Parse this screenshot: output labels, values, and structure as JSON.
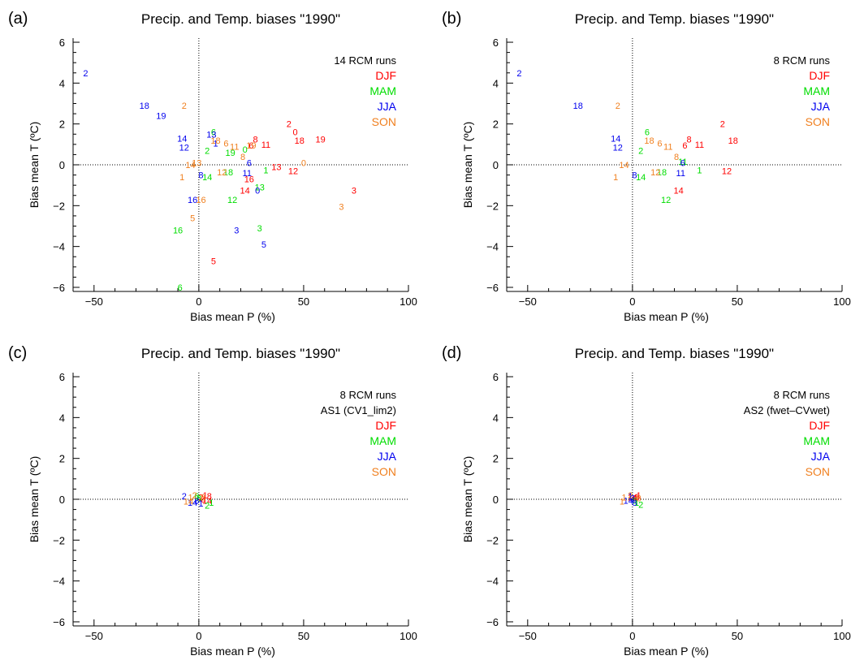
{
  "colors": {
    "DJF": "#ff0000",
    "MAM": "#00dd00",
    "JJA": "#0000ee",
    "SON": "#f08020"
  },
  "legend": [
    "DJF",
    "MAM",
    "JJA",
    "SON"
  ],
  "chart_data": [
    {
      "panel": "(a)",
      "type": "scatter",
      "title": "Precip. and Temp. biases \"1990\"",
      "xlabel": "Bias mean P (%)",
      "ylabel": "Bias mean T (ºC)",
      "xlim": [
        -60,
        100
      ],
      "ylim": [
        -6.2,
        6.2
      ],
      "xticks": [
        -50,
        0,
        50,
        100
      ],
      "yticks": [
        -6,
        -4,
        -2,
        0,
        2,
        4,
        6
      ],
      "notes": [
        "14 RCM runs"
      ],
      "series": [
        {
          "name": "DJF",
          "points": [
            {
              "label": "2",
              "x": 43,
              "y": 2.0
            },
            {
              "label": "0",
              "x": 46,
              "y": 1.6
            },
            {
              "label": "18",
              "x": 48,
              "y": 1.2
            },
            {
              "label": "19",
              "x": 58,
              "y": 1.25
            },
            {
              "label": "11",
              "x": 32,
              "y": 1.0
            },
            {
              "label": "8",
              "x": 27,
              "y": 1.25
            },
            {
              "label": "6",
              "x": 25,
              "y": 0.95
            },
            {
              "label": "13",
              "x": 37,
              "y": -0.1
            },
            {
              "label": "12",
              "x": 45,
              "y": -0.3
            },
            {
              "label": "16",
              "x": 24,
              "y": -0.7
            },
            {
              "label": "14",
              "x": 22,
              "y": -1.25
            },
            {
              "label": "3",
              "x": 74,
              "y": -1.25
            },
            {
              "label": "5",
              "x": 7,
              "y": -4.7
            }
          ]
        },
        {
          "name": "MAM",
          "points": [
            {
              "label": "6",
              "x": 7,
              "y": 1.6
            },
            {
              "label": "0",
              "x": 22,
              "y": 0.75
            },
            {
              "label": "2",
              "x": 4,
              "y": 0.7
            },
            {
              "label": "19",
              "x": 15,
              "y": 0.6
            },
            {
              "label": "1",
              "x": 32,
              "y": -0.25
            },
            {
              "label": "13",
              "x": 29,
              "y": -1.1
            },
            {
              "label": "12",
              "x": 16,
              "y": -1.7
            },
            {
              "label": "14",
              "x": 4,
              "y": -0.6
            },
            {
              "label": "18",
              "x": 14,
              "y": -0.35
            },
            {
              "label": "3",
              "x": 29,
              "y": -3.1
            },
            {
              "label": "16",
              "x": -10,
              "y": -3.2
            },
            {
              "label": "6",
              "x": -9,
              "y": -6.0
            }
          ]
        },
        {
          "name": "JJA",
          "points": [
            {
              "label": "2",
              "x": -54,
              "y": 4.5
            },
            {
              "label": "18",
              "x": -26,
              "y": 2.9
            },
            {
              "label": "19",
              "x": -18,
              "y": 2.4
            },
            {
              "label": "14",
              "x": -8,
              "y": 1.3
            },
            {
              "label": "12",
              "x": -7,
              "y": 0.85
            },
            {
              "label": "13",
              "x": 6,
              "y": 1.5
            },
            {
              "label": "1",
              "x": 8,
              "y": 1.05
            },
            {
              "label": "6",
              "x": 24,
              "y": 0.1
            },
            {
              "label": "11",
              "x": 23,
              "y": -0.4
            },
            {
              "label": "0",
              "x": 28,
              "y": -1.25
            },
            {
              "label": "8",
              "x": 1,
              "y": -0.5
            },
            {
              "label": "16",
              "x": -3,
              "y": -1.7
            },
            {
              "label": "3",
              "x": 18,
              "y": -3.2
            },
            {
              "label": "5",
              "x": 31,
              "y": -3.9
            }
          ]
        },
        {
          "name": "SON",
          "points": [
            {
              "label": "2",
              "x": -7,
              "y": 2.9
            },
            {
              "label": "0",
              "x": 50,
              "y": 0.1
            },
            {
              "label": "18",
              "x": 8,
              "y": 1.2
            },
            {
              "label": "6",
              "x": 13,
              "y": 1.05
            },
            {
              "label": "11",
              "x": 17,
              "y": 0.9
            },
            {
              "label": "8",
              "x": 21,
              "y": 0.4
            },
            {
              "label": "19",
              "x": 25,
              "y": 0.95
            },
            {
              "label": "14",
              "x": -4,
              "y": 0.0
            },
            {
              "label": "13",
              "x": -1,
              "y": 0.1
            },
            {
              "label": "1",
              "x": -8,
              "y": -0.6
            },
            {
              "label": "12",
              "x": 11,
              "y": -0.35
            },
            {
              "label": "16",
              "x": 1,
              "y": -1.7
            },
            {
              "label": "5",
              "x": -3,
              "y": -2.6
            },
            {
              "label": "3",
              "x": 68,
              "y": -2.05
            }
          ]
        }
      ]
    },
    {
      "panel": "(b)",
      "type": "scatter",
      "title": "Precip. and Temp. biases \"1990\"",
      "xlabel": "Bias mean P (%)",
      "ylabel": "Bias mean T (ºC)",
      "xlim": [
        -60,
        100
      ],
      "ylim": [
        -6.2,
        6.2
      ],
      "xticks": [
        -50,
        0,
        50,
        100
      ],
      "yticks": [
        -6,
        -4,
        -2,
        0,
        2,
        4,
        6
      ],
      "notes": [
        "8 RCM runs"
      ],
      "series": [
        {
          "name": "DJF",
          "points": [
            {
              "label": "2",
              "x": 43,
              "y": 2.0
            },
            {
              "label": "18",
              "x": 48,
              "y": 1.2
            },
            {
              "label": "11",
              "x": 32,
              "y": 1.0
            },
            {
              "label": "8",
              "x": 27,
              "y": 1.25
            },
            {
              "label": "6",
              "x": 25,
              "y": 0.95
            },
            {
              "label": "12",
              "x": 45,
              "y": -0.3
            },
            {
              "label": "14",
              "x": 22,
              "y": -1.25
            }
          ]
        },
        {
          "name": "MAM",
          "points": [
            {
              "label": "6",
              "x": 7,
              "y": 1.6
            },
            {
              "label": "2",
              "x": 4,
              "y": 0.7
            },
            {
              "label": "1",
              "x": 32,
              "y": -0.25
            },
            {
              "label": "12",
              "x": 16,
              "y": -1.7
            },
            {
              "label": "14",
              "x": 4,
              "y": -0.6
            },
            {
              "label": "18",
              "x": 14,
              "y": -0.35
            },
            {
              "label": "11",
              "x": 24,
              "y": 0.15
            }
          ]
        },
        {
          "name": "JJA",
          "points": [
            {
              "label": "2",
              "x": -54,
              "y": 4.5
            },
            {
              "label": "18",
              "x": -26,
              "y": 2.9
            },
            {
              "label": "14",
              "x": -8,
              "y": 1.3
            },
            {
              "label": "12",
              "x": -7,
              "y": 0.85
            },
            {
              "label": "6",
              "x": 24,
              "y": 0.1
            },
            {
              "label": "11",
              "x": 23,
              "y": -0.4
            },
            {
              "label": "8",
              "x": 1,
              "y": -0.5
            }
          ]
        },
        {
          "name": "SON",
          "points": [
            {
              "label": "2",
              "x": -7,
              "y": 2.9
            },
            {
              "label": "18",
              "x": 8,
              "y": 1.2
            },
            {
              "label": "6",
              "x": 13,
              "y": 1.05
            },
            {
              "label": "11",
              "x": 17,
              "y": 0.9
            },
            {
              "label": "8",
              "x": 21,
              "y": 0.4
            },
            {
              "label": "14",
              "x": -4,
              "y": 0.0
            },
            {
              "label": "1",
              "x": -8,
              "y": -0.6
            },
            {
              "label": "12",
              "x": 11,
              "y": -0.35
            }
          ]
        }
      ]
    },
    {
      "panel": "(c)",
      "type": "scatter",
      "title": "Precip. and Temp. biases \"1990\"",
      "xlabel": "Bias mean P (%)",
      "ylabel": "Bias mean T (ºC)",
      "xlim": [
        -60,
        100
      ],
      "ylim": [
        -6.2,
        6.2
      ],
      "xticks": [
        -50,
        0,
        50,
        100
      ],
      "yticks": [
        -6,
        -4,
        -2,
        0,
        2,
        4,
        6
      ],
      "notes": [
        "8 RCM runs",
        "AS1 (CV1_lim2)"
      ],
      "series": [
        {
          "name": "DJF",
          "points": [
            {
              "label": "1",
              "x": 3,
              "y": 0.2
            },
            {
              "label": "8",
              "x": 5,
              "y": 0.15
            },
            {
              "label": "6",
              "x": 2,
              "y": 0.0
            },
            {
              "label": "2",
              "x": 1,
              "y": 0.1
            },
            {
              "label": "14",
              "x": 4,
              "y": -0.05
            }
          ]
        },
        {
          "name": "MAM",
          "points": [
            {
              "label": "2",
              "x": 4,
              "y": -0.3
            },
            {
              "label": "1",
              "x": 6,
              "y": -0.15
            },
            {
              "label": "8",
              "x": 0,
              "y": 0.05
            },
            {
              "label": "6",
              "x": -1,
              "y": 0.15
            }
          ]
        },
        {
          "name": "JJA",
          "points": [
            {
              "label": "2",
              "x": -7,
              "y": 0.15
            },
            {
              "label": "8",
              "x": -1,
              "y": -0.05
            },
            {
              "label": "1",
              "x": 1,
              "y": -0.2
            },
            {
              "label": "14",
              "x": -3,
              "y": -0.15
            }
          ]
        },
        {
          "name": "SON",
          "points": [
            {
              "label": "1",
              "x": -4,
              "y": 0.1
            },
            {
              "label": "2",
              "x": -2,
              "y": 0.2
            },
            {
              "label": "14",
              "x": -5,
              "y": -0.1
            },
            {
              "label": "8",
              "x": 2,
              "y": 0.1
            }
          ]
        }
      ]
    },
    {
      "panel": "(d)",
      "type": "scatter",
      "title": "Precip. and Temp. biases \"1990\"",
      "xlabel": "Bias mean P (%)",
      "ylabel": "Bias mean T (ºC)",
      "xlim": [
        -60,
        100
      ],
      "ylim": [
        -6.2,
        6.2
      ],
      "xticks": [
        -50,
        0,
        50,
        100
      ],
      "yticks": [
        -6,
        -4,
        -2,
        0,
        2,
        4,
        6
      ],
      "notes": [
        "8 RCM runs",
        "AS2 (fwet–CVwet)"
      ],
      "series": [
        {
          "name": "DJF",
          "points": [
            {
              "label": "1",
              "x": 3,
              "y": 0.2
            },
            {
              "label": "8",
              "x": 2,
              "y": 0.1
            },
            {
              "label": "6",
              "x": 1,
              "y": 0.05
            },
            {
              "label": "14",
              "x": 0,
              "y": 0.1
            }
          ]
        },
        {
          "name": "MAM",
          "points": [
            {
              "label": "2",
              "x": 4,
              "y": -0.25
            },
            {
              "label": "1",
              "x": 2,
              "y": -0.15
            },
            {
              "label": "6",
              "x": 1,
              "y": -0.05
            }
          ]
        },
        {
          "name": "JJA",
          "points": [
            {
              "label": "1",
              "x": -1,
              "y": 0.15
            },
            {
              "label": "2",
              "x": 0,
              "y": 0.05
            },
            {
              "label": "8",
              "x": 1,
              "y": -0.15
            },
            {
              "label": "14",
              "x": -2,
              "y": -0.05
            }
          ]
        },
        {
          "name": "SON",
          "points": [
            {
              "label": "1",
              "x": -4,
              "y": 0.1
            },
            {
              "label": "1",
              "x": -5,
              "y": -0.1
            },
            {
              "label": "2",
              "x": -1,
              "y": 0.2
            },
            {
              "label": "8",
              "x": 3,
              "y": 0.05
            }
          ]
        }
      ]
    }
  ]
}
